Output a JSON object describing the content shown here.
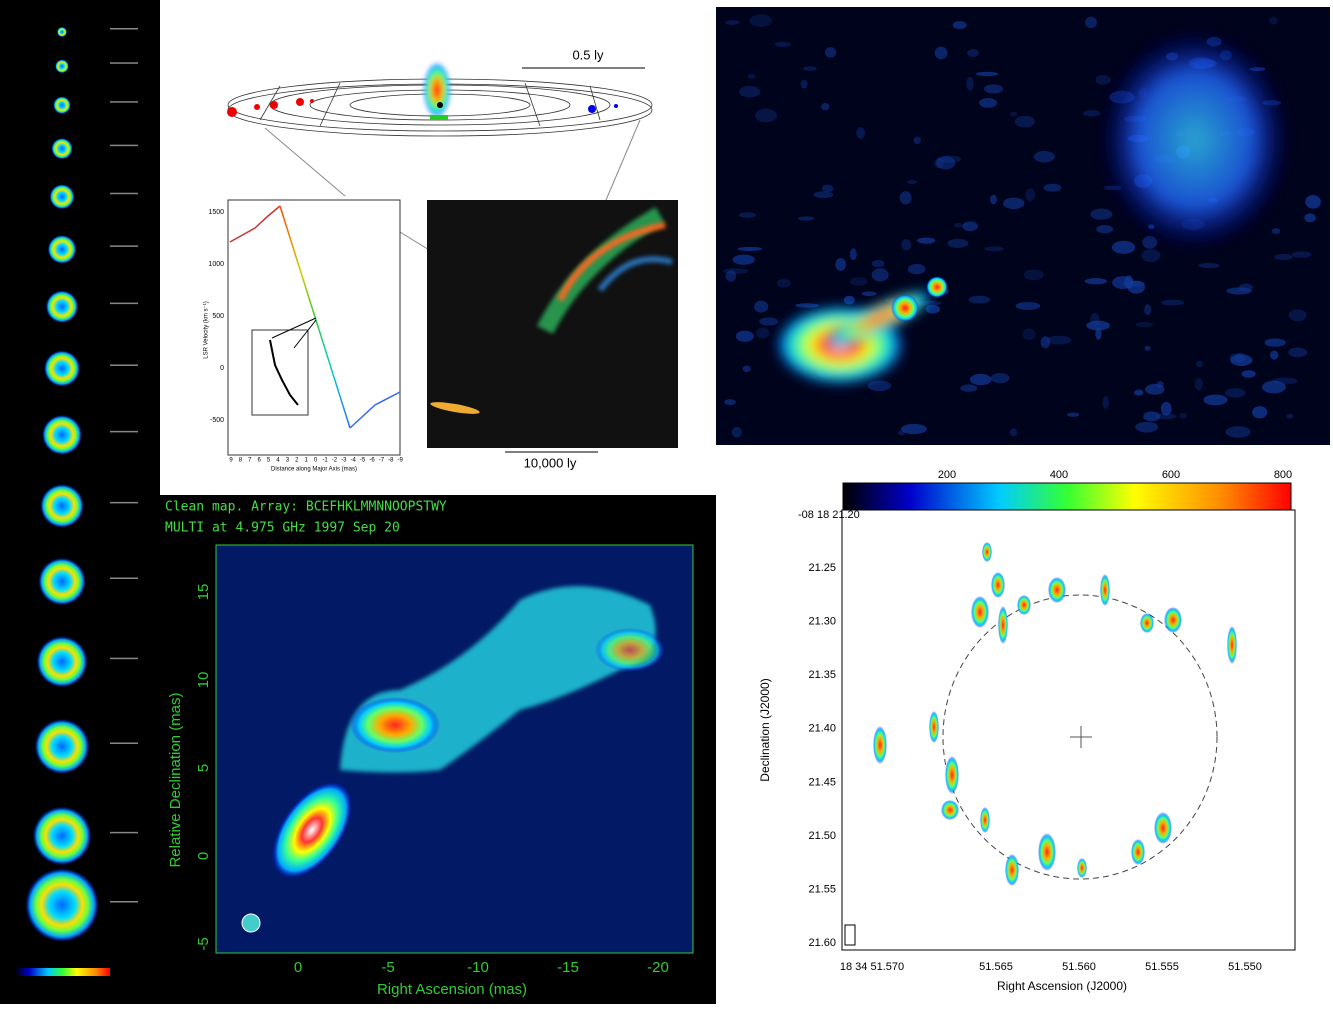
{
  "maser_panel": {
    "scale_top": "0.5 ly",
    "scale_bottom": "10,000 ly",
    "y_label": "LSR Velocity (km s⁻¹)",
    "x_label": "Distance along Major Axis (mas)",
    "y_ticks": [
      "1500",
      "1000",
      "500",
      "0",
      "-500"
    ],
    "x_ticks": [
      "9",
      "8",
      "7",
      "6",
      "5",
      "4",
      "3",
      "2",
      "1",
      "0",
      "-1",
      "-2",
      "-3",
      "-4",
      "-5",
      "-6",
      "-7",
      "-8",
      "-9"
    ]
  },
  "vlba_panel": {
    "title_line1": "Clean map.  Array: BCEFHKLMMNNOOPSTWY",
    "title_line2": "MULTI at 4.975 GHz 1997 Sep 20",
    "y_label": "Relative Declination  (mas)",
    "x_label": "Right Ascension  (mas)",
    "y_ticks": [
      "15",
      "10",
      "5",
      "0",
      "-5"
    ],
    "x_ticks": [
      "0",
      "-5",
      "-10",
      "-15",
      "-20"
    ]
  },
  "ring_panel": {
    "colorbar_ticks": [
      "200",
      "400",
      "600",
      "800"
    ],
    "dec_header": "-08 18 21.20",
    "y_label": "Declination (J2000)",
    "x_label": "Right Ascension (J2000)",
    "y_ticks": [
      "21.25",
      "21.30",
      "21.35",
      "21.40",
      "21.45",
      "21.50",
      "21.55",
      "21.60"
    ],
    "x_ticks": [
      "18 34 51.570",
      "51.565",
      "51.560",
      "51.555",
      "51.550"
    ]
  }
}
